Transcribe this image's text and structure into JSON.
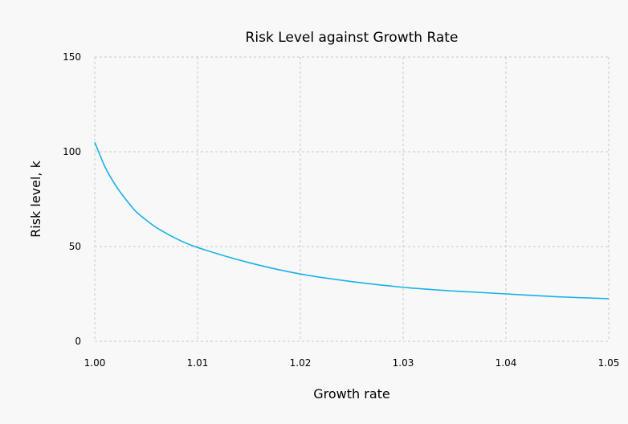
{
  "chart_data": {
    "type": "line",
    "title": "Risk Level against Growth Rate",
    "xlabel": "Growth rate",
    "ylabel": "Risk level, k",
    "xlim": [
      1.0,
      1.05
    ],
    "ylim": [
      0,
      150
    ],
    "grid": true,
    "xticks": [
      "1.00",
      "1.01",
      "1.02",
      "1.03",
      "1.04",
      "1.05"
    ],
    "yticks": [
      "0",
      "50",
      "100",
      "150"
    ],
    "line_color": "#1ab0e8",
    "series": [
      {
        "x": [
          1.0,
          1.001,
          1.002,
          1.003,
          1.004,
          1.005,
          1.006,
          1.008,
          1.01,
          1.015,
          1.02,
          1.025,
          1.03,
          1.035,
          1.04,
          1.045,
          1.05
        ],
        "y": [
          105,
          92,
          82.5,
          75,
          68.5,
          64,
          60,
          54,
          49.5,
          41.5,
          35.5,
          31.5,
          28.5,
          26.5,
          25,
          23.5,
          22.5
        ]
      }
    ]
  }
}
